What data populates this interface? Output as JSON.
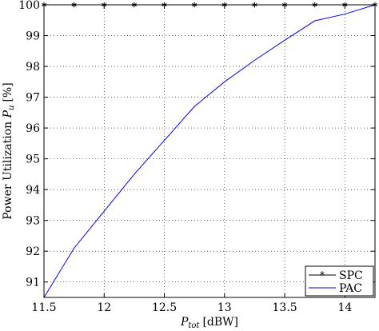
{
  "chart_data": {
    "type": "line",
    "title": "",
    "xlabel": {
      "symbol": "P",
      "subscript": "tot",
      "unit": "[dBW]"
    },
    "ylabel": {
      "text": "Power Utilization ",
      "symbol": "P",
      "subscript": "u",
      "unit": "[%]"
    },
    "xlim": [
      11.5,
      14.25
    ],
    "ylim": [
      90.5,
      100
    ],
    "xticks": [
      11.5,
      12,
      12.5,
      13,
      13.5,
      14
    ],
    "yticks": [
      91,
      92,
      93,
      94,
      95,
      96,
      97,
      98,
      99,
      100
    ],
    "grid": true,
    "grid_style": "dotted",
    "legend_position": "bottom-right",
    "series": [
      {
        "name": "SPC",
        "color": "#000000",
        "marker": "asterisk",
        "x": [
          11.5,
          11.75,
          12.0,
          12.25,
          12.5,
          12.75,
          13.0,
          13.25,
          13.5,
          13.75,
          14.0,
          14.25
        ],
        "y": [
          100,
          100,
          100,
          100,
          100,
          100,
          100,
          100,
          100,
          100,
          100,
          100
        ]
      },
      {
        "name": "PAC",
        "color": "#0000ff",
        "marker": "none",
        "x": [
          11.5,
          11.75,
          12.0,
          12.25,
          12.5,
          12.75,
          13.0,
          13.25,
          13.5,
          13.75,
          14.0,
          14.25
        ],
        "y": [
          90.5,
          92.1,
          93.3,
          94.5,
          95.6,
          96.7,
          97.5,
          98.2,
          98.85,
          99.48,
          99.7,
          100
        ]
      }
    ]
  }
}
